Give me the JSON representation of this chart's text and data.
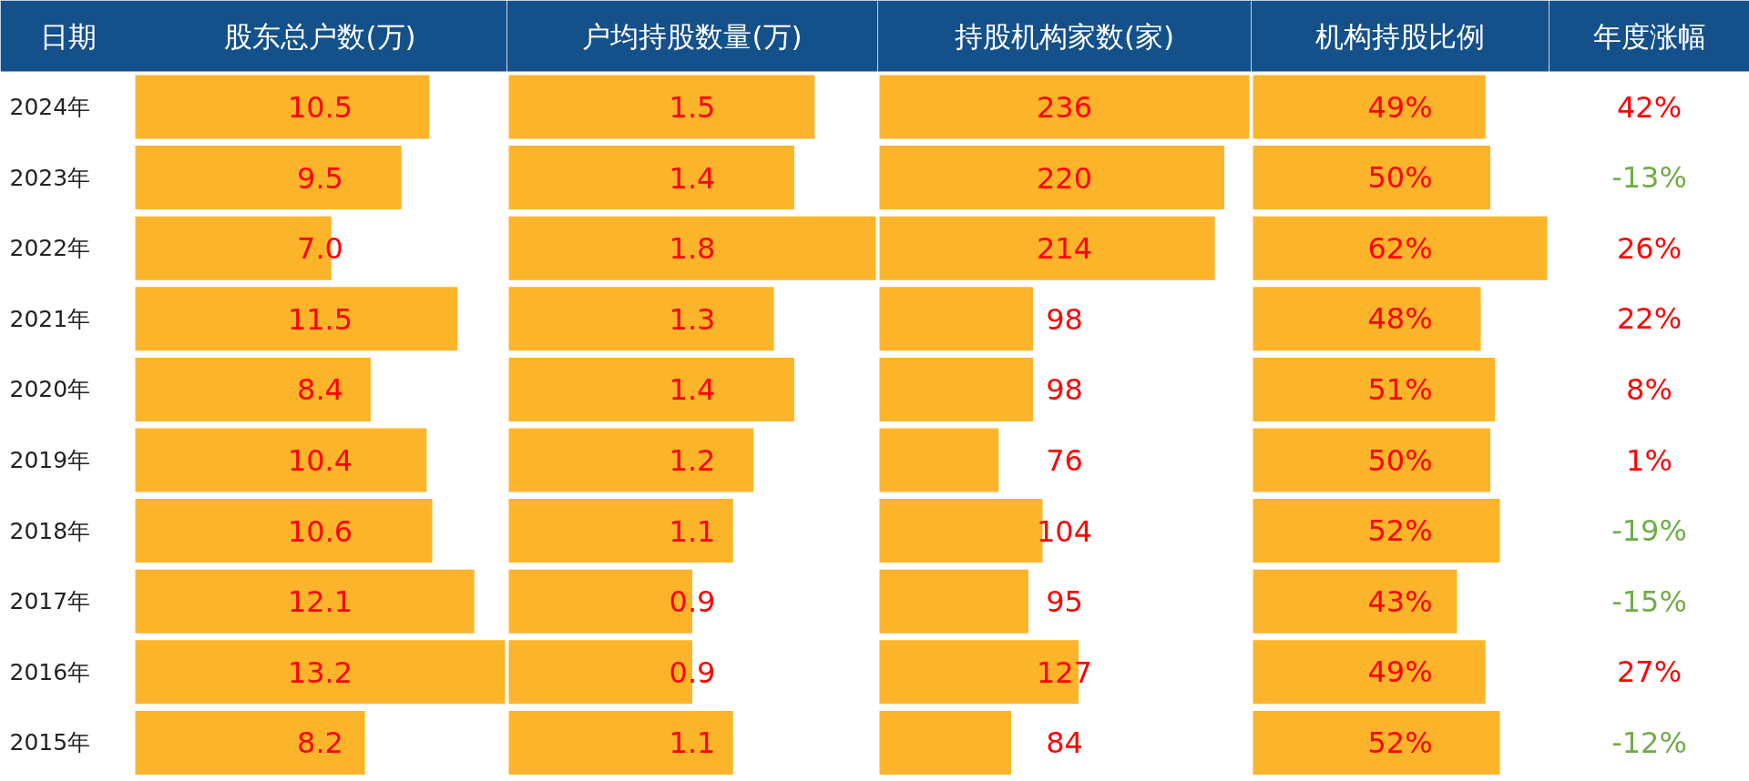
{
  "chart_data": [
    {
      "type": "bar",
      "orientation": "horizontal",
      "title": "股东总户数(万)",
      "ylabel": "日期",
      "tick_labels": "y",
      "categories": [
        "2024年",
        "2023年",
        "2022年",
        "2021年",
        "2020年",
        "2019年",
        "2018年",
        "2017年",
        "2016年",
        "2015年"
      ],
      "color": "#fcb42b",
      "values": [
        10.5,
        9.5,
        7.0,
        11.5,
        8.4,
        10.4,
        10.6,
        12.1,
        13.2,
        8.2
      ],
      "value_labels": [
        "10.5",
        "9.5",
        "7.0",
        "11.5",
        "8.4",
        "10.4",
        "10.6",
        "12.1",
        "13.2",
        "8.2"
      ]
    },
    {
      "type": "bar",
      "orientation": "horizontal",
      "title": "户均持股数量(万)",
      "tick_labels": false,
      "color": "#fcb42b",
      "data_labels": true,
      "values": [
        1.5,
        1.4,
        1.8,
        1.3,
        1.4,
        1.2,
        1.1,
        0.9,
        0.9,
        1.1
      ]
    },
    {
      "type": "bar",
      "orientation": "horizontal",
      "title": "持股机构家数(家)",
      "tick_labels": false,
      "color": "#fcb42b",
      "data_labels": true,
      "values": [
        236,
        220,
        214,
        98,
        98,
        76,
        104,
        95,
        127,
        84
      ]
    },
    {
      "type": "bar",
      "orientation": "horizontal",
      "title": "机构持股比例",
      "tick_labels": false,
      "color": "#fcb42b",
      "values": [
        49,
        50,
        62,
        48,
        51,
        50,
        52,
        43,
        49,
        52
      ],
      "value_labels": [
        "49%",
        "50%",
        "62%",
        "48%",
        "51%",
        "50%",
        "52%",
        "43%",
        "49%",
        "52%"
      ]
    },
    {
      "type": "other",
      "title": "年度涨幅",
      "values": [
        42,
        -13,
        26,
        22,
        8,
        1,
        -19,
        -15,
        27,
        -12
      ],
      "value_labels": [
        "42%",
        "-13%",
        "26%",
        "22%",
        "8%",
        "1%",
        "-19%",
        "-15%",
        "27%",
        "-12%"
      ],
      "colors": [
        "#ff0000",
        "#70ad47",
        "#ff0000",
        "#ff0000",
        "#ff0000",
        "#ff0000",
        "#70ad47",
        "#70ad47",
        "#ff0000",
        "#70ad47"
      ]
    }
  ]
}
